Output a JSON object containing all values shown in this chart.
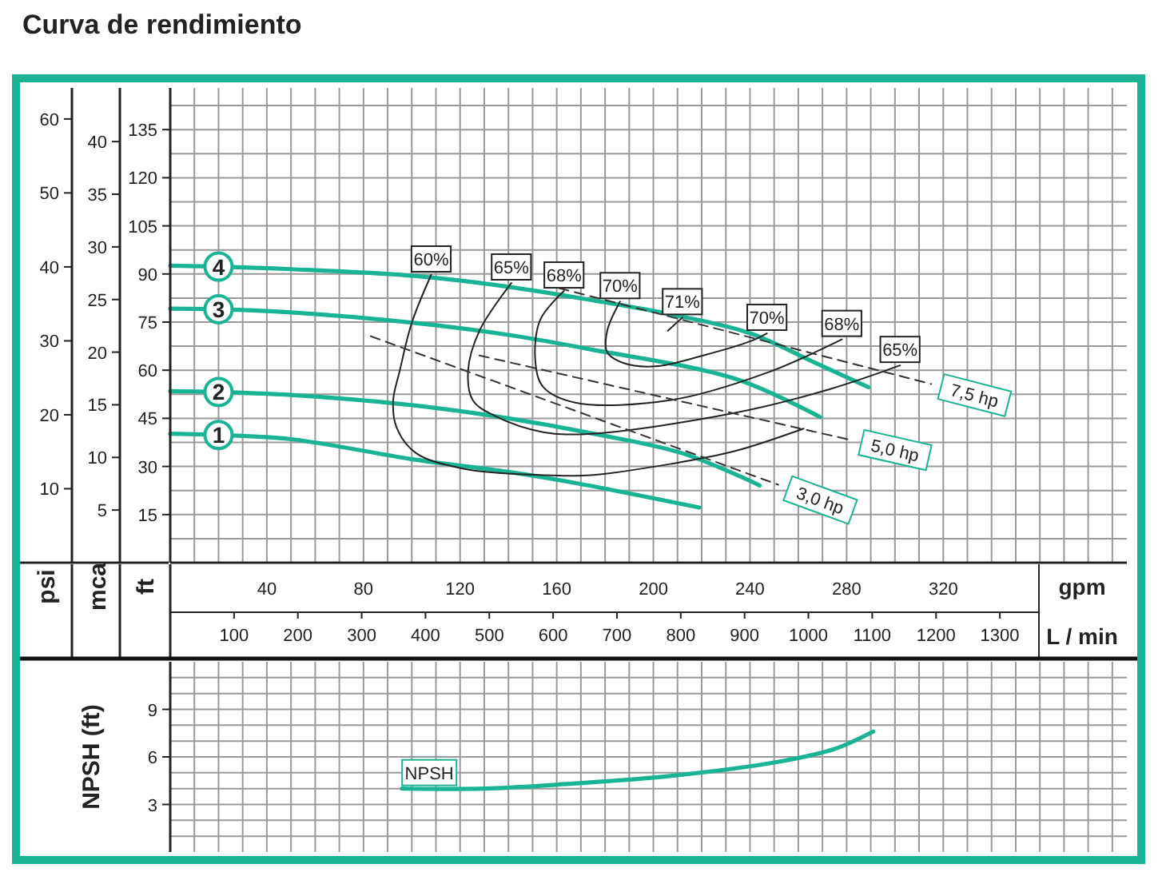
{
  "chart_data": [
    {
      "type": "line",
      "title": "Curva de rendimiento",
      "xlabel": "gpm",
      "x2label": "L / min",
      "ylabel": "ft",
      "y2label": "mca",
      "y3label": "psi",
      "grid": true,
      "xlim": [
        0,
        396
      ],
      "xticks": [
        {
          "value": 10,
          "label": null
        },
        {
          "value": 20,
          "label": null
        },
        {
          "value": 30,
          "label": null
        },
        40,
        {
          "value": 50,
          "label": null
        },
        {
          "value": 60,
          "label": null
        },
        {
          "value": 70,
          "label": null
        },
        80,
        {
          "value": 90,
          "label": null
        },
        {
          "value": 100,
          "label": null
        },
        {
          "value": 110,
          "label": null
        },
        120,
        {
          "value": 130,
          "label": null
        },
        {
          "value": 140,
          "label": null
        },
        {
          "value": 150,
          "label": null
        },
        160,
        {
          "value": 170,
          "label": null
        },
        {
          "value": 180,
          "label": null
        },
        {
          "value": 190,
          "label": null
        },
        200,
        {
          "value": 210,
          "label": null
        },
        {
          "value": 220,
          "label": null
        },
        {
          "value": 230,
          "label": null
        },
        240,
        {
          "value": 250,
          "label": null
        },
        {
          "value": 260,
          "label": null
        },
        {
          "value": 270,
          "label": null
        },
        280,
        {
          "value": 290,
          "label": null
        },
        {
          "value": 300,
          "label": null
        },
        {
          "value": 310,
          "label": null
        },
        320,
        {
          "value": 330,
          "label": null
        },
        {
          "value": 340,
          "label": null
        },
        {
          "value": 350,
          "label": null
        },
        {
          "value": 360,
          "label": null
        },
        {
          "value": 370,
          "label": null
        },
        {
          "value": 380,
          "label": null
        },
        {
          "value": 390,
          "label": null
        }
      ],
      "x2lim": [
        0,
        1499
      ],
      "x2ticks": [
        100,
        200,
        300,
        400,
        500,
        600,
        700,
        800,
        900,
        1000,
        1100,
        1200,
        1300
      ],
      "ylim": [
        0,
        148
      ],
      "yticks": [
        {
          "value": 7.5,
          "label": null
        },
        15,
        {
          "value": 22.5,
          "label": null
        },
        30,
        {
          "value": 37.5,
          "label": null
        },
        45,
        {
          "value": 52.5,
          "label": null
        },
        60,
        {
          "value": 67.5,
          "label": null
        },
        75,
        {
          "value": 82.5,
          "label": null
        },
        90,
        {
          "value": 97.5,
          "label": null
        },
        105,
        {
          "value": 112.5,
          "label": null
        },
        120,
        {
          "value": 127.5,
          "label": null
        },
        135,
        {
          "value": 142.5,
          "label": null
        }
      ],
      "y2lim": [
        0,
        45.1
      ],
      "y2ticks": [
        5,
        10,
        15,
        20,
        25,
        30,
        35,
        40
      ],
      "y3lim": [
        0,
        64.2
      ],
      "y3ticks": [
        10,
        20,
        30,
        40,
        50,
        60
      ],
      "series": [
        {
          "name": "4",
          "color": "#1ab394",
          "x": [
            0,
            20,
            50,
            101,
            140,
            174,
            210,
            240,
            267,
            289
          ],
          "values": [
            92.6,
            92.3,
            91.5,
            89.4,
            86,
            81.9,
            77,
            71.5,
            62.3,
            54.7
          ]
        },
        {
          "name": "3",
          "color": "#1ab394",
          "x": [
            0,
            20,
            50,
            101.5,
            140,
            174,
            234,
            269
          ],
          "values": [
            79.2,
            79,
            78,
            74.7,
            71,
            66.5,
            57.3,
            45.4
          ]
        },
        {
          "name": "2",
          "color": "#1ab394",
          "x": [
            0,
            20,
            50,
            101.5,
            140,
            174,
            212,
            244
          ],
          "values": [
            53.5,
            53.2,
            52.3,
            49,
            45,
            40.4,
            34.1,
            24.1
          ]
        },
        {
          "name": "1",
          "color": "#1ab394",
          "x": [
            0,
            20,
            50,
            101.5,
            140,
            168,
            219
          ],
          "values": [
            40.2,
            39.8,
            38.5,
            32.1,
            28.3,
            24.8,
            17.2
          ]
        },
        {
          "name": "60%",
          "color": "#222222",
          "x": [
            108,
            100,
            95,
            92.3,
            93.6,
            101.5,
            121.4,
            154.4,
            174.3,
            207.3,
            233.8,
            262.2
          ],
          "values": [
            89.7,
            74.8,
            59.8,
            50.6,
            42.4,
            34.3,
            29.3,
            27.3,
            27.3,
            30.8,
            34.8,
            41.8
          ]
        },
        {
          "name": "65%",
          "color": "#222222",
          "x": [
            141.2,
            128,
            123.3,
            125.3,
            134.6,
            154.4,
            174.3,
            233.8,
            273.5,
            302.1
          ],
          "values": [
            87.2,
            72.3,
            59.8,
            50.6,
            45.7,
            40.7,
            40.2,
            46.7,
            54.2,
            61.5
          ]
        },
        {
          "name": "68%",
          "color": "#222222",
          "x": [
            163,
            153.1,
            151.2,
            154.4,
            167.7,
            207.3,
            247,
            278
          ],
          "values": [
            84.7,
            75.6,
            62.3,
            54.8,
            49.9,
            50.7,
            59.2,
            69.6
          ]
        },
        {
          "name": "70%",
          "color": "#222222",
          "x": [
            186.2,
            180.9,
            180.9,
            187.5,
            200.7,
            220.6,
            240.4,
            247
          ],
          "values": [
            81.4,
            72.3,
            65.6,
            62.3,
            61.2,
            64.6,
            69.1,
            71.5
          ]
        },
        {
          "name": "71%",
          "color": "#222222",
          "x": [
            212,
            206
          ],
          "values": [
            76.4,
            72.3
          ]
        },
        {
          "name": "3,0 hp",
          "color": "#333333",
          "line_style": "dashed",
          "x": [
            83,
            251.7
          ],
          "values": [
            70.6,
            24.3
          ]
        },
        {
          "name": "5,0 hp",
          "color": "#333333",
          "line_style": "dashed",
          "x": [
            128,
            282
          ],
          "values": [
            64.6,
            38.2
          ]
        },
        {
          "name": "7,5 hp",
          "color": "#333333",
          "line_style": "dashed",
          "x": [
            161,
            315
          ],
          "values": [
            85.6,
            55.7
          ]
        }
      ],
      "annotations": [
        {
          "text": "70%",
          "x": 247,
          "y": 71.5
        },
        {
          "text": "68%",
          "x": 278,
          "y": 69.6
        },
        {
          "text": "65%",
          "x": 302.1,
          "y": 61.5
        }
      ]
    },
    {
      "type": "line",
      "ylabel": "NPSH (ft)",
      "grid": true,
      "tick_labels": "y",
      "xlim": [
        0,
        396
      ],
      "xticks": [
        {
          "value": 10,
          "label": null
        },
        {
          "value": 20,
          "label": null
        },
        {
          "value": 30,
          "label": null
        },
        {
          "value": 40,
          "label": null
        },
        {
          "value": 50,
          "label": null
        },
        {
          "value": 60,
          "label": null
        },
        {
          "value": 70,
          "label": null
        },
        {
          "value": 80,
          "label": null
        },
        {
          "value": 90,
          "label": null
        },
        {
          "value": 100,
          "label": null
        },
        {
          "value": 110,
          "label": null
        },
        {
          "value": 120,
          "label": null
        },
        {
          "value": 130,
          "label": null
        },
        {
          "value": 140,
          "label": null
        },
        {
          "value": 150,
          "label": null
        },
        {
          "value": 160,
          "label": null
        },
        {
          "value": 170,
          "label": null
        },
        {
          "value": 180,
          "label": null
        },
        {
          "value": 190,
          "label": null
        },
        {
          "value": 200,
          "label": null
        },
        {
          "value": 210,
          "label": null
        },
        {
          "value": 220,
          "label": null
        },
        {
          "value": 230,
          "label": null
        },
        {
          "value": 240,
          "label": null
        },
        {
          "value": 250,
          "label": null
        },
        {
          "value": 260,
          "label": null
        },
        {
          "value": 270,
          "label": null
        },
        {
          "value": 280,
          "label": null
        },
        {
          "value": 290,
          "label": null
        },
        {
          "value": 300,
          "label": null
        },
        {
          "value": 310,
          "label": null
        },
        {
          "value": 320,
          "label": null
        },
        {
          "value": 330,
          "label": null
        },
        {
          "value": 340,
          "label": null
        },
        {
          "value": 350,
          "label": null
        },
        {
          "value": 360,
          "label": null
        },
        {
          "value": 370,
          "label": null
        },
        {
          "value": 380,
          "label": null
        },
        {
          "value": 390,
          "label": null
        }
      ],
      "ylim": [
        0,
        12
      ],
      "yticks": [
        {
          "value": 1,
          "label": null
        },
        {
          "value": 2,
          "label": null
        },
        3,
        {
          "value": 4,
          "label": null
        },
        {
          "value": 5,
          "label": null
        },
        6,
        {
          "value": 7,
          "label": null
        },
        {
          "value": 8,
          "label": null
        },
        9,
        {
          "value": 10,
          "label": null
        },
        {
          "value": 11,
          "label": null
        }
      ],
      "series": [
        {
          "name": "NPSH",
          "color": "#1ab394",
          "x": [
            96,
            130,
            165,
            207,
            252,
            275,
            291
          ],
          "values": [
            4,
            4,
            4.3,
            4.8,
            5.7,
            6.5,
            7.6
          ]
        }
      ]
    }
  ]
}
